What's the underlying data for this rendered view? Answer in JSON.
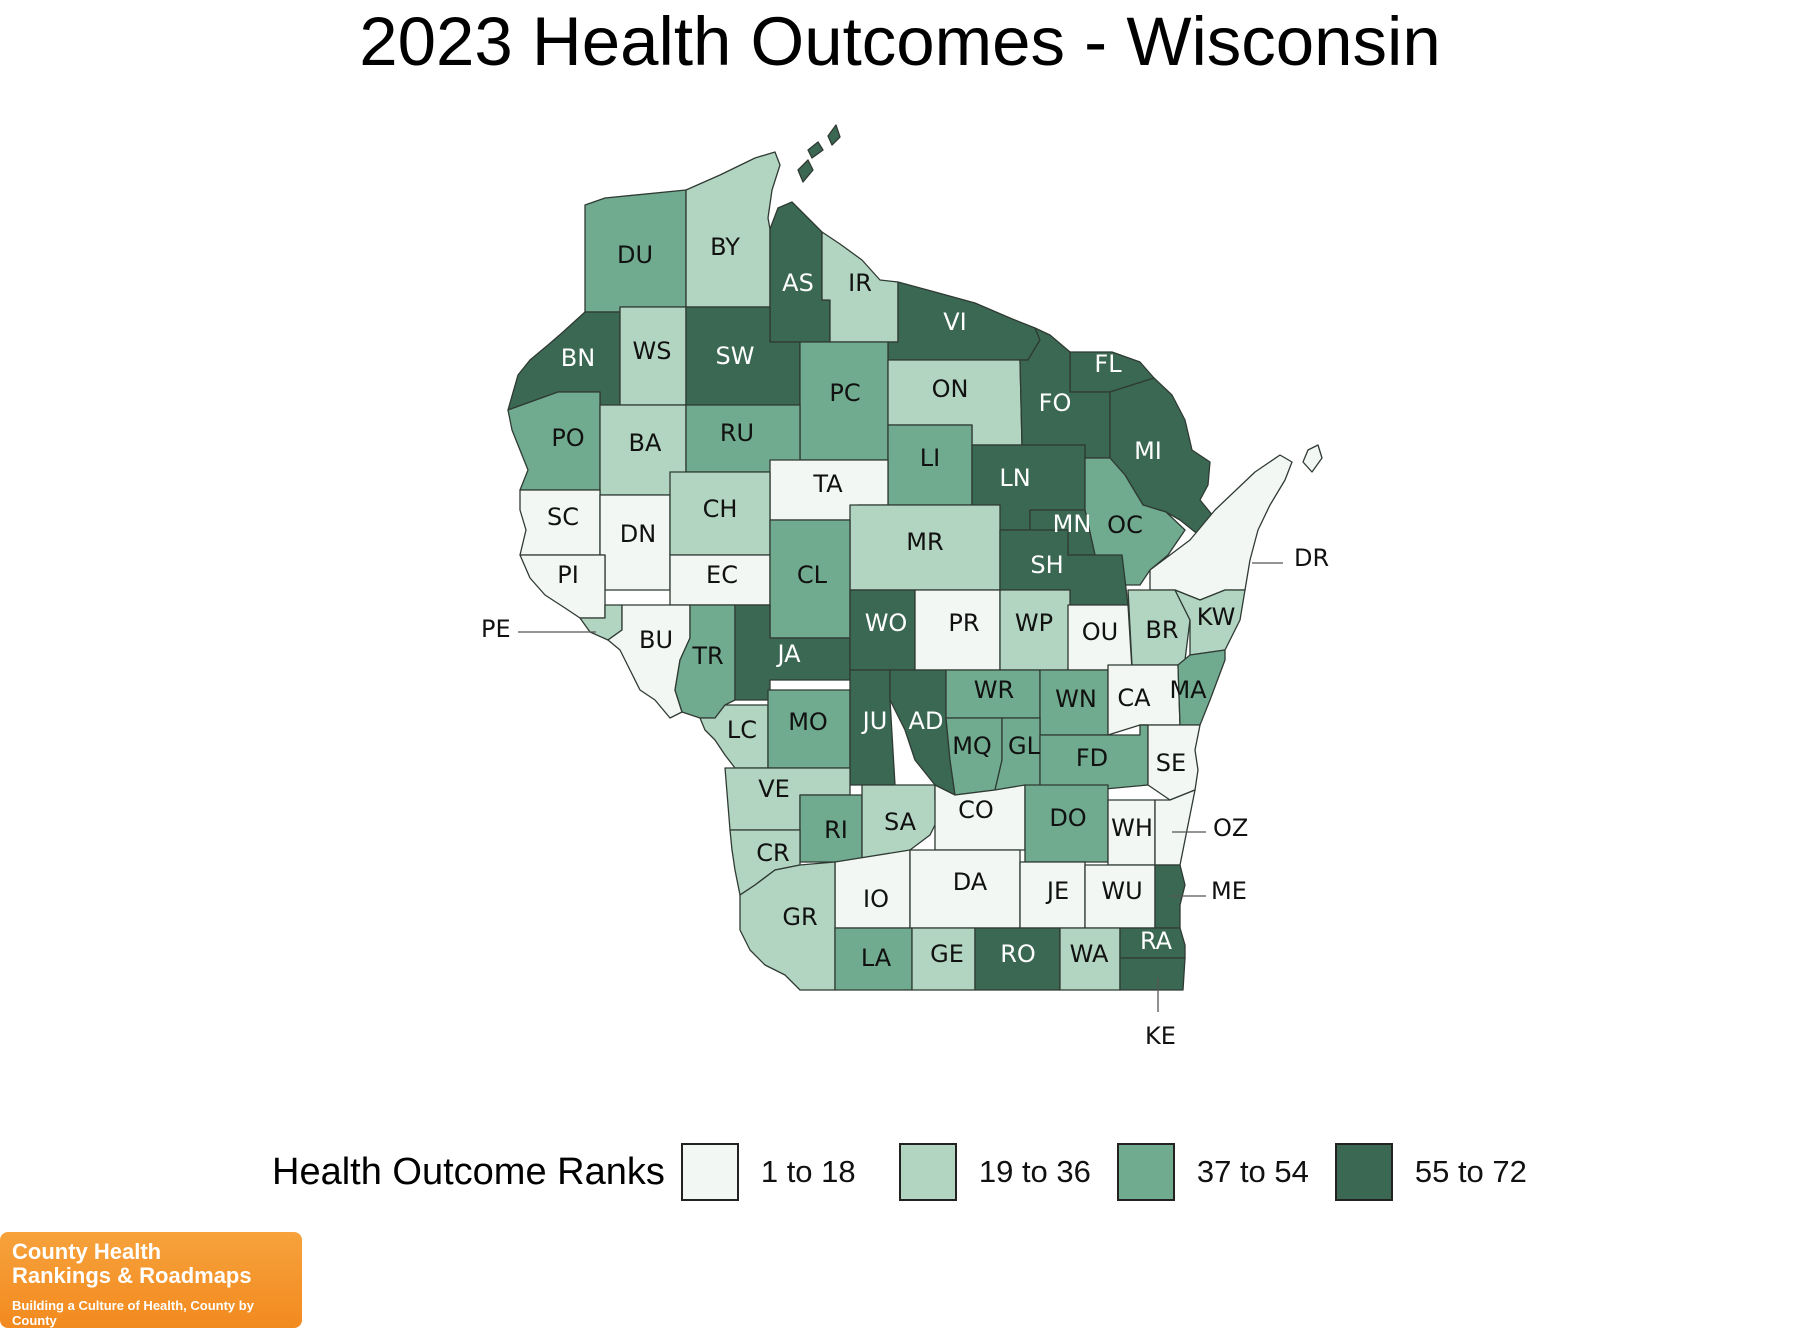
{
  "title": "2023 Health Outcomes - Wisconsin",
  "legend": {
    "title": "Health Outcome Ranks",
    "items": [
      {
        "label": "1 to 18",
        "color": "#f2f7f4"
      },
      {
        "label": "19 to 36",
        "color": "#b2d5c1"
      },
      {
        "label": "37 to 54",
        "color": "#70ab8f"
      },
      {
        "label": "55 to 72",
        "color": "#3b6853"
      }
    ]
  },
  "counties": [
    {
      "code": "DU",
      "cat": 2
    },
    {
      "code": "BY",
      "cat": 1
    },
    {
      "code": "AS",
      "cat": 3
    },
    {
      "code": "IR",
      "cat": 1
    },
    {
      "code": "VI",
      "cat": 3
    },
    {
      "code": "BN",
      "cat": 3
    },
    {
      "code": "WS",
      "cat": 1
    },
    {
      "code": "SW",
      "cat": 3
    },
    {
      "code": "PC",
      "cat": 2
    },
    {
      "code": "ON",
      "cat": 1
    },
    {
      "code": "FL",
      "cat": 3
    },
    {
      "code": "FO",
      "cat": 3
    },
    {
      "code": "MI",
      "cat": 3
    },
    {
      "code": "PO",
      "cat": 2
    },
    {
      "code": "BA",
      "cat": 1
    },
    {
      "code": "RU",
      "cat": 2
    },
    {
      "code": "LI",
      "cat": 2
    },
    {
      "code": "LN",
      "cat": 3
    },
    {
      "code": "TA",
      "cat": 0
    },
    {
      "code": "SC",
      "cat": 0
    },
    {
      "code": "DN",
      "cat": 0
    },
    {
      "code": "CH",
      "cat": 1
    },
    {
      "code": "MR",
      "cat": 1
    },
    {
      "code": "MN",
      "cat": 3
    },
    {
      "code": "OC",
      "cat": 2
    },
    {
      "code": "PI",
      "cat": 0
    },
    {
      "code": "EC",
      "cat": 0
    },
    {
      "code": "CL",
      "cat": 2
    },
    {
      "code": "SH",
      "cat": 3
    },
    {
      "code": "DR",
      "cat": 0
    },
    {
      "code": "PE",
      "cat": 1
    },
    {
      "code": "BU",
      "cat": 0
    },
    {
      "code": "TR",
      "cat": 2
    },
    {
      "code": "JA",
      "cat": 3
    },
    {
      "code": "WO",
      "cat": 3
    },
    {
      "code": "PR",
      "cat": 0
    },
    {
      "code": "WP",
      "cat": 1
    },
    {
      "code": "OU",
      "cat": 0
    },
    {
      "code": "BR",
      "cat": 1
    },
    {
      "code": "KW",
      "cat": 1
    },
    {
      "code": "LC",
      "cat": 1
    },
    {
      "code": "MO",
      "cat": 2
    },
    {
      "code": "JU",
      "cat": 3
    },
    {
      "code": "AD",
      "cat": 3
    },
    {
      "code": "WR",
      "cat": 2
    },
    {
      "code": "WN",
      "cat": 2
    },
    {
      "code": "CA",
      "cat": 0
    },
    {
      "code": "MA",
      "cat": 2
    },
    {
      "code": "MQ",
      "cat": 2
    },
    {
      "code": "GL",
      "cat": 2
    },
    {
      "code": "FD",
      "cat": 2
    },
    {
      "code": "SE",
      "cat": 0
    },
    {
      "code": "VE",
      "cat": 1
    },
    {
      "code": "RI",
      "cat": 2
    },
    {
      "code": "SA",
      "cat": 1
    },
    {
      "code": "CO",
      "cat": 0
    },
    {
      "code": "DO",
      "cat": 2
    },
    {
      "code": "WH",
      "cat": 0
    },
    {
      "code": "OZ",
      "cat": 0
    },
    {
      "code": "CR",
      "cat": 1
    },
    {
      "code": "IO",
      "cat": 0
    },
    {
      "code": "DA",
      "cat": 0
    },
    {
      "code": "JE",
      "cat": 0
    },
    {
      "code": "WU",
      "cat": 0
    },
    {
      "code": "ME",
      "cat": 3
    },
    {
      "code": "GR",
      "cat": 1
    },
    {
      "code": "LA",
      "cat": 2
    },
    {
      "code": "GE",
      "cat": 1
    },
    {
      "code": "RO",
      "cat": 3
    },
    {
      "code": "WA",
      "cat": 1
    },
    {
      "code": "RA",
      "cat": 3
    },
    {
      "code": "KE",
      "cat": 3
    }
  ],
  "logo": {
    "line1": "County Health",
    "line2": "Rankings & Roadmaps",
    "tagline": "Building a Culture of Health, County by County"
  }
}
